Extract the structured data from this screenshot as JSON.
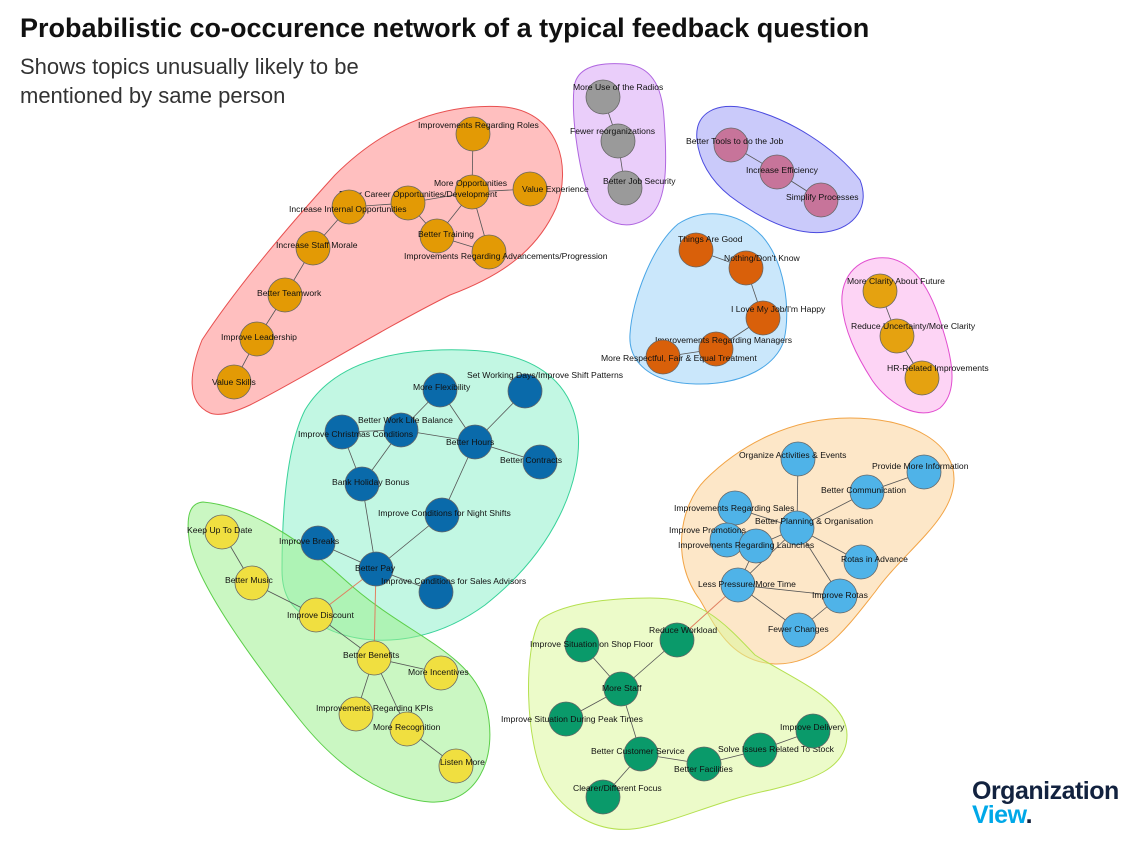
{
  "title": "Probabilistic co-occurence network of a typical feedback question",
  "subtitle": "Shows topics unusually likely to be mentioned by same person",
  "logo": {
    "line1": "Organization",
    "line2": "View",
    "dot": "."
  },
  "clusters": [
    {
      "id": "orange-group",
      "fill": "#ff8a8a",
      "stroke": "#e85050",
      "nodes": [
        "Improvements Regarding Roles",
        "More Opportunities",
        "Value Experience",
        "Better Career Opportunities/Development",
        "Increase Internal Opportunities",
        "Better Training",
        "Improvements Regarding Advancements/Progression",
        "Increase Staff Morale",
        "Better Teamwork",
        "Improve Leadership",
        "Value Skills"
      ]
    },
    {
      "id": "grey-group",
      "fill": "#d9a6f5",
      "stroke": "#b066e0",
      "nodes": [
        "More Use of the Radios",
        "Fewer reorganizations",
        "Better Job Security"
      ]
    },
    {
      "id": "pink-purple-group",
      "fill": "#9e9ef5",
      "stroke": "#4a4adf",
      "nodes": [
        "Better Tools to do the Job",
        "Increase Efficiency",
        "Simplify Processes"
      ]
    },
    {
      "id": "dark-orange-group",
      "fill": "#9fd4f7",
      "stroke": "#4aa6e6",
      "nodes": [
        "Things Are Good",
        "Nothing/Don't Know",
        "I Love My Job/I'm Happy",
        "Improvements Regarding Managers",
        "More Respectful, Fair & Equal Treatment"
      ]
    },
    {
      "id": "gold-group",
      "fill": "#fbb0ec",
      "stroke": "#e24ed0",
      "nodes": [
        "More Clarity About Future",
        "Reduce Uncertainty/More Clarity",
        "HR-Related Improvements"
      ]
    },
    {
      "id": "dark-blue-group",
      "fill": "#8ff0cc",
      "stroke": "#38d29a",
      "nodes": [
        "More Flexibility",
        "Set Working Days/Improve Shift Patterns",
        "Better Work Life Balance",
        "Improve Christmas Conditions",
        "Better Hours",
        "Better Contracts",
        "Bank Holiday Bonus",
        "Improve Conditions for Night Shifts",
        "Improve Breaks",
        "Better Pay",
        "Improve Conditions for Sales Advisors"
      ]
    },
    {
      "id": "light-blue-group",
      "fill": "#fcd39a",
      "stroke": "#f2a446",
      "nodes": [
        "Organize Activities & Events",
        "Provide More Information",
        "Better Communication",
        "Improvements Regarding Sales",
        "Better Planning & Organisation",
        "Improve Promotions",
        "Improvements Regarding Launches",
        "Rotas in Advance",
        "Less Pressure/More Time",
        "Improve Rotas",
        "Fewer Changes"
      ]
    },
    {
      "id": "yellow-group",
      "fill": "#9ff08f",
      "stroke": "#5ccf4a",
      "nodes": [
        "Keep Up To Date",
        "Better Music",
        "Improve Discount",
        "Better Benefits",
        "More Incentives",
        "Improvements Regarding KPIs",
        "More Recognition",
        "Listen More"
      ]
    },
    {
      "id": "green-group",
      "fill": "#dcf79c",
      "stroke": "#b5e050",
      "nodes": [
        "Reduce Workload",
        "Improve Situation on Shop Floor",
        "More Staff",
        "Improve Situation During Peak Times",
        "Better Customer Service",
        "Better Facilities",
        "Solve Issues Related To Stock",
        "Improve Delivery",
        "Clearer/Different Focus"
      ]
    }
  ],
  "node_colors": {
    "orange": "#e39a05",
    "grey": "#9a9a9a",
    "mauve": "#c7749a",
    "dark_orange": "#d9600a",
    "gold": "#e5a210",
    "blue": "#0a6aaa",
    "light_blue": "#4fb3e8",
    "yellow": "#f0df40",
    "green": "#0a9a6a"
  },
  "edges": [
    [
      "Improvements Regarding Roles",
      "More Opportunities"
    ],
    [
      "More Opportunities",
      "Value Experience"
    ],
    [
      "More Opportunities",
      "Better Career Opportunities/Development"
    ],
    [
      "More Opportunities",
      "Better Training"
    ],
    [
      "More Opportunities",
      "Improvements Regarding Advancements/Progression"
    ],
    [
      "Better Career Opportunities/Development",
      "Increase Internal Opportunities"
    ],
    [
      "Better Career Opportunities/Development",
      "Better Training"
    ],
    [
      "Better Training",
      "Improvements Regarding Advancements/Progression"
    ],
    [
      "Increase Internal Opportunities",
      "Increase Staff Morale"
    ],
    [
      "Increase Staff Morale",
      "Better Teamwork"
    ],
    [
      "Better Teamwork",
      "Improve Leadership"
    ],
    [
      "Improve Leadership",
      "Value Skills"
    ],
    [
      "More Use of the Radios",
      "Fewer reorganizations"
    ],
    [
      "Fewer reorganizations",
      "Better Job Security"
    ],
    [
      "Better Tools to do the Job",
      "Increase Efficiency"
    ],
    [
      "Increase Efficiency",
      "Simplify Processes"
    ],
    [
      "Things Are Good",
      "Nothing/Don't Know"
    ],
    [
      "Nothing/Don't Know",
      "I Love My Job/I'm Happy"
    ],
    [
      "I Love My Job/I'm Happy",
      "Improvements Regarding Managers"
    ],
    [
      "Improvements Regarding Managers",
      "More Respectful, Fair & Equal Treatment"
    ],
    [
      "More Clarity About Future",
      "Reduce Uncertainty/More Clarity"
    ],
    [
      "Reduce Uncertainty/More Clarity",
      "HR-Related Improvements"
    ],
    [
      "More Flexibility",
      "Better Hours"
    ],
    [
      "Set Working Days/Improve Shift Patterns",
      "Better Hours"
    ],
    [
      "Better Work Life Balance",
      "Better Hours"
    ],
    [
      "Better Work Life Balance",
      "Improve Christmas Conditions"
    ],
    [
      "Better Work Life Balance",
      "More Flexibility"
    ],
    [
      "Improve Christmas Conditions",
      "Bank Holiday Bonus"
    ],
    [
      "Better Work Life Balance",
      "Bank Holiday Bonus"
    ],
    [
      "Better Hours",
      "Better Contracts"
    ],
    [
      "Better Hours",
      "Improve Conditions for Night Shifts"
    ],
    [
      "Improve Conditions for Night Shifts",
      "Better Pay"
    ],
    [
      "Bank Holiday Bonus",
      "Better Pay"
    ],
    [
      "Improve Breaks",
      "Better Pay"
    ],
    [
      "Better Pay",
      "Improve Conditions for Sales Advisors"
    ],
    [
      "Better Pay",
      "Improve Discount"
    ],
    [
      "Better Pay",
      "Better Benefits"
    ],
    [
      "Keep Up To Date",
      "Better Music"
    ],
    [
      "Better Music",
      "Improve Discount"
    ],
    [
      "Improve Discount",
      "Better Benefits"
    ],
    [
      "Better Benefits",
      "More Incentives"
    ],
    [
      "Better Benefits",
      "Improvements Regarding KPIs"
    ],
    [
      "Better Benefits",
      "More Recognition"
    ],
    [
      "More Recognition",
      "Listen More"
    ],
    [
      "Organize Activities & Events",
      "Better Planning & Organisation"
    ],
    [
      "Provide More Information",
      "Better Communication"
    ],
    [
      "Better Communication",
      "Better Planning & Organisation"
    ],
    [
      "Improvements Regarding Sales",
      "Better Planning & Organisation"
    ],
    [
      "Improvements Regarding Sales",
      "Improve Promotions"
    ],
    [
      "Improve Promotions",
      "Improvements Regarding Launches"
    ],
    [
      "Improvements Regarding Launches",
      "Better Planning & Organisation"
    ],
    [
      "Better Planning & Organisation",
      "Rotas in Advance"
    ],
    [
      "Better Planning & Organisation",
      "Less Pressure/More Time"
    ],
    [
      "Better Planning & Organisation",
      "Improve Rotas"
    ],
    [
      "Improvements Regarding Launches",
      "Less Pressure/More Time"
    ],
    [
      "Less Pressure/More Time",
      "Improve Rotas"
    ],
    [
      "Less Pressure/More Time",
      "Fewer Changes"
    ],
    [
      "Improve Rotas",
      "Fewer Changes"
    ],
    [
      "Less Pressure/More Time",
      "Reduce Workload"
    ],
    [
      "Reduce Workload",
      "More Staff"
    ],
    [
      "Improve Situation on Shop Floor",
      "More Staff"
    ],
    [
      "More Staff",
      "Improve Situation During Peak Times"
    ],
    [
      "More Staff",
      "Better Customer Service"
    ],
    [
      "Better Customer Service",
      "Better Facilities"
    ],
    [
      "Better Customer Service",
      "Clearer/Different Focus"
    ],
    [
      "Better Facilities",
      "Solve Issues Related To Stock"
    ],
    [
      "Solve Issues Related To Stock",
      "Improve Delivery"
    ]
  ]
}
